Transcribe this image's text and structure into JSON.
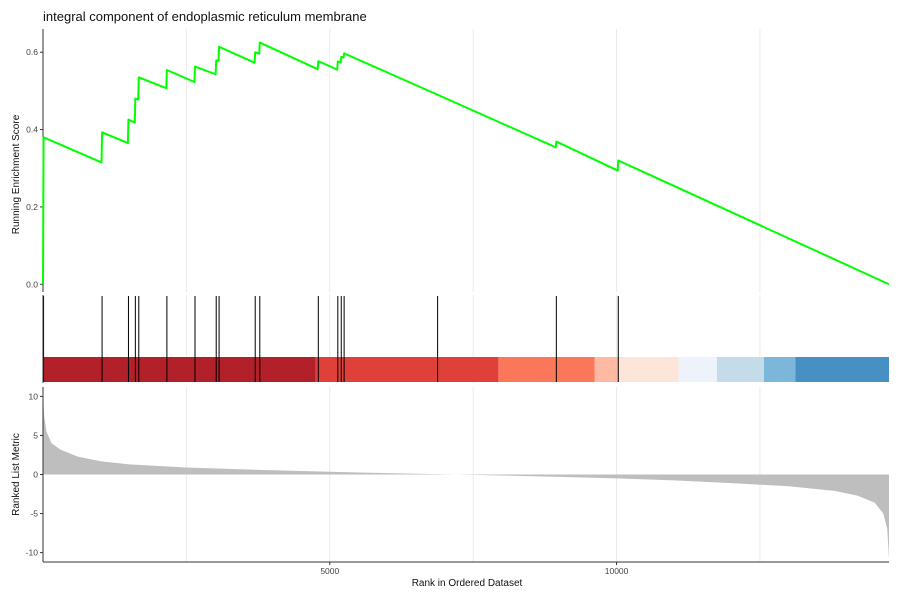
{
  "title": "integral component of endoplasmic reticulum membrane",
  "chart_data": {
    "type": "line",
    "title": "integral component of endoplasmic reticulum membrane",
    "xlabel": "Rank in Ordered Dataset",
    "xlim": [
      0,
      14750
    ],
    "x_ticks": [
      5000,
      10000
    ],
    "x_gridlines": [
      2500,
      5000,
      7500,
      10000,
      12500
    ],
    "grid": "major vertical only",
    "colors": {
      "curve": "#00ff00",
      "hits": "#000000",
      "metric_fill": "#bebebe"
    },
    "running_score": {
      "ylabel": "Running Enrichment Score",
      "ylim": [
        -0.02,
        0.66
      ],
      "y_ticks": [
        0.0,
        0.2,
        0.4,
        0.6
      ],
      "y_tick_labels": [
        "0.0",
        "0.2",
        "0.4",
        "0.6"
      ],
      "points": [
        [
          0,
          0.0
        ],
        [
          10,
          0.38
        ],
        [
          1020,
          0.315
        ],
        [
          1030,
          0.393
        ],
        [
          1480,
          0.365
        ],
        [
          1490,
          0.426
        ],
        [
          1600,
          0.418
        ],
        [
          1610,
          0.48
        ],
        [
          1660,
          0.478
        ],
        [
          1670,
          0.535
        ],
        [
          2150,
          0.507
        ],
        [
          2160,
          0.554
        ],
        [
          2640,
          0.523
        ],
        [
          2650,
          0.563
        ],
        [
          3010,
          0.543
        ],
        [
          3020,
          0.579
        ],
        [
          3060,
          0.578
        ],
        [
          3070,
          0.614
        ],
        [
          3690,
          0.573
        ],
        [
          3700,
          0.6
        ],
        [
          3770,
          0.596
        ],
        [
          3780,
          0.625
        ],
        [
          4790,
          0.556
        ],
        [
          4800,
          0.577
        ],
        [
          5130,
          0.555
        ],
        [
          5140,
          0.576
        ],
        [
          5190,
          0.574
        ],
        [
          5200,
          0.588
        ],
        [
          5240,
          0.586
        ],
        [
          5250,
          0.597
        ],
        [
          6880,
          0.49
        ],
        [
          8940,
          0.354
        ],
        [
          8950,
          0.369
        ],
        [
          10020,
          0.294
        ],
        [
          10030,
          0.32
        ],
        [
          14750,
          0.0
        ]
      ]
    },
    "gene_hits": [
      10,
      1030,
      1490,
      1610,
      1670,
      2160,
      2650,
      3020,
      3070,
      3700,
      3780,
      4800,
      5140,
      5200,
      5250,
      6880,
      8950,
      10030
    ],
    "rank_color_bands": [
      {
        "from": 0,
        "to": 4750,
        "color": "#b2202a"
      },
      {
        "from": 4750,
        "to": 7940,
        "color": "#e0403a"
      },
      {
        "from": 7940,
        "to": 9620,
        "color": "#fa775a"
      },
      {
        "from": 9620,
        "to": 10040,
        "color": "#fdb9a2"
      },
      {
        "from": 10040,
        "to": 11080,
        "color": "#fde5da"
      },
      {
        "from": 11080,
        "to": 11750,
        "color": "#eef3fb"
      },
      {
        "from": 11750,
        "to": 12570,
        "color": "#c4dcea"
      },
      {
        "from": 12570,
        "to": 13120,
        "color": "#7cb6d8"
      },
      {
        "from": 13120,
        "to": 14750,
        "color": "#4690c4"
      }
    ],
    "ranked_metric": {
      "ylabel": "Ranked List Metric",
      "ylim": [
        -11.2,
        11.2
      ],
      "y_ticks": [
        10,
        5,
        0,
        -5,
        -10
      ],
      "y_tick_labels": [
        "10",
        "5",
        "0",
        "-5",
        "-10"
      ],
      "points": [
        [
          0,
          10.5
        ],
        [
          20,
          7.5
        ],
        [
          60,
          5.5
        ],
        [
          150,
          4.0
        ],
        [
          300,
          3.2
        ],
        [
          600,
          2.3
        ],
        [
          1000,
          1.7
        ],
        [
          1500,
          1.3
        ],
        [
          2500,
          0.9
        ],
        [
          3500,
          0.65
        ],
        [
          4500,
          0.45
        ],
        [
          5500,
          0.25
        ],
        [
          6500,
          0.1
        ],
        [
          7200,
          0.0
        ],
        [
          8000,
          -0.12
        ],
        [
          9000,
          -0.3
        ],
        [
          10000,
          -0.5
        ],
        [
          11000,
          -0.75
        ],
        [
          12000,
          -1.1
        ],
        [
          13000,
          -1.5
        ],
        [
          13800,
          -2.1
        ],
        [
          14200,
          -2.7
        ],
        [
          14500,
          -3.6
        ],
        [
          14650,
          -5.0
        ],
        [
          14720,
          -7.0
        ],
        [
          14750,
          -10.8
        ]
      ]
    }
  }
}
